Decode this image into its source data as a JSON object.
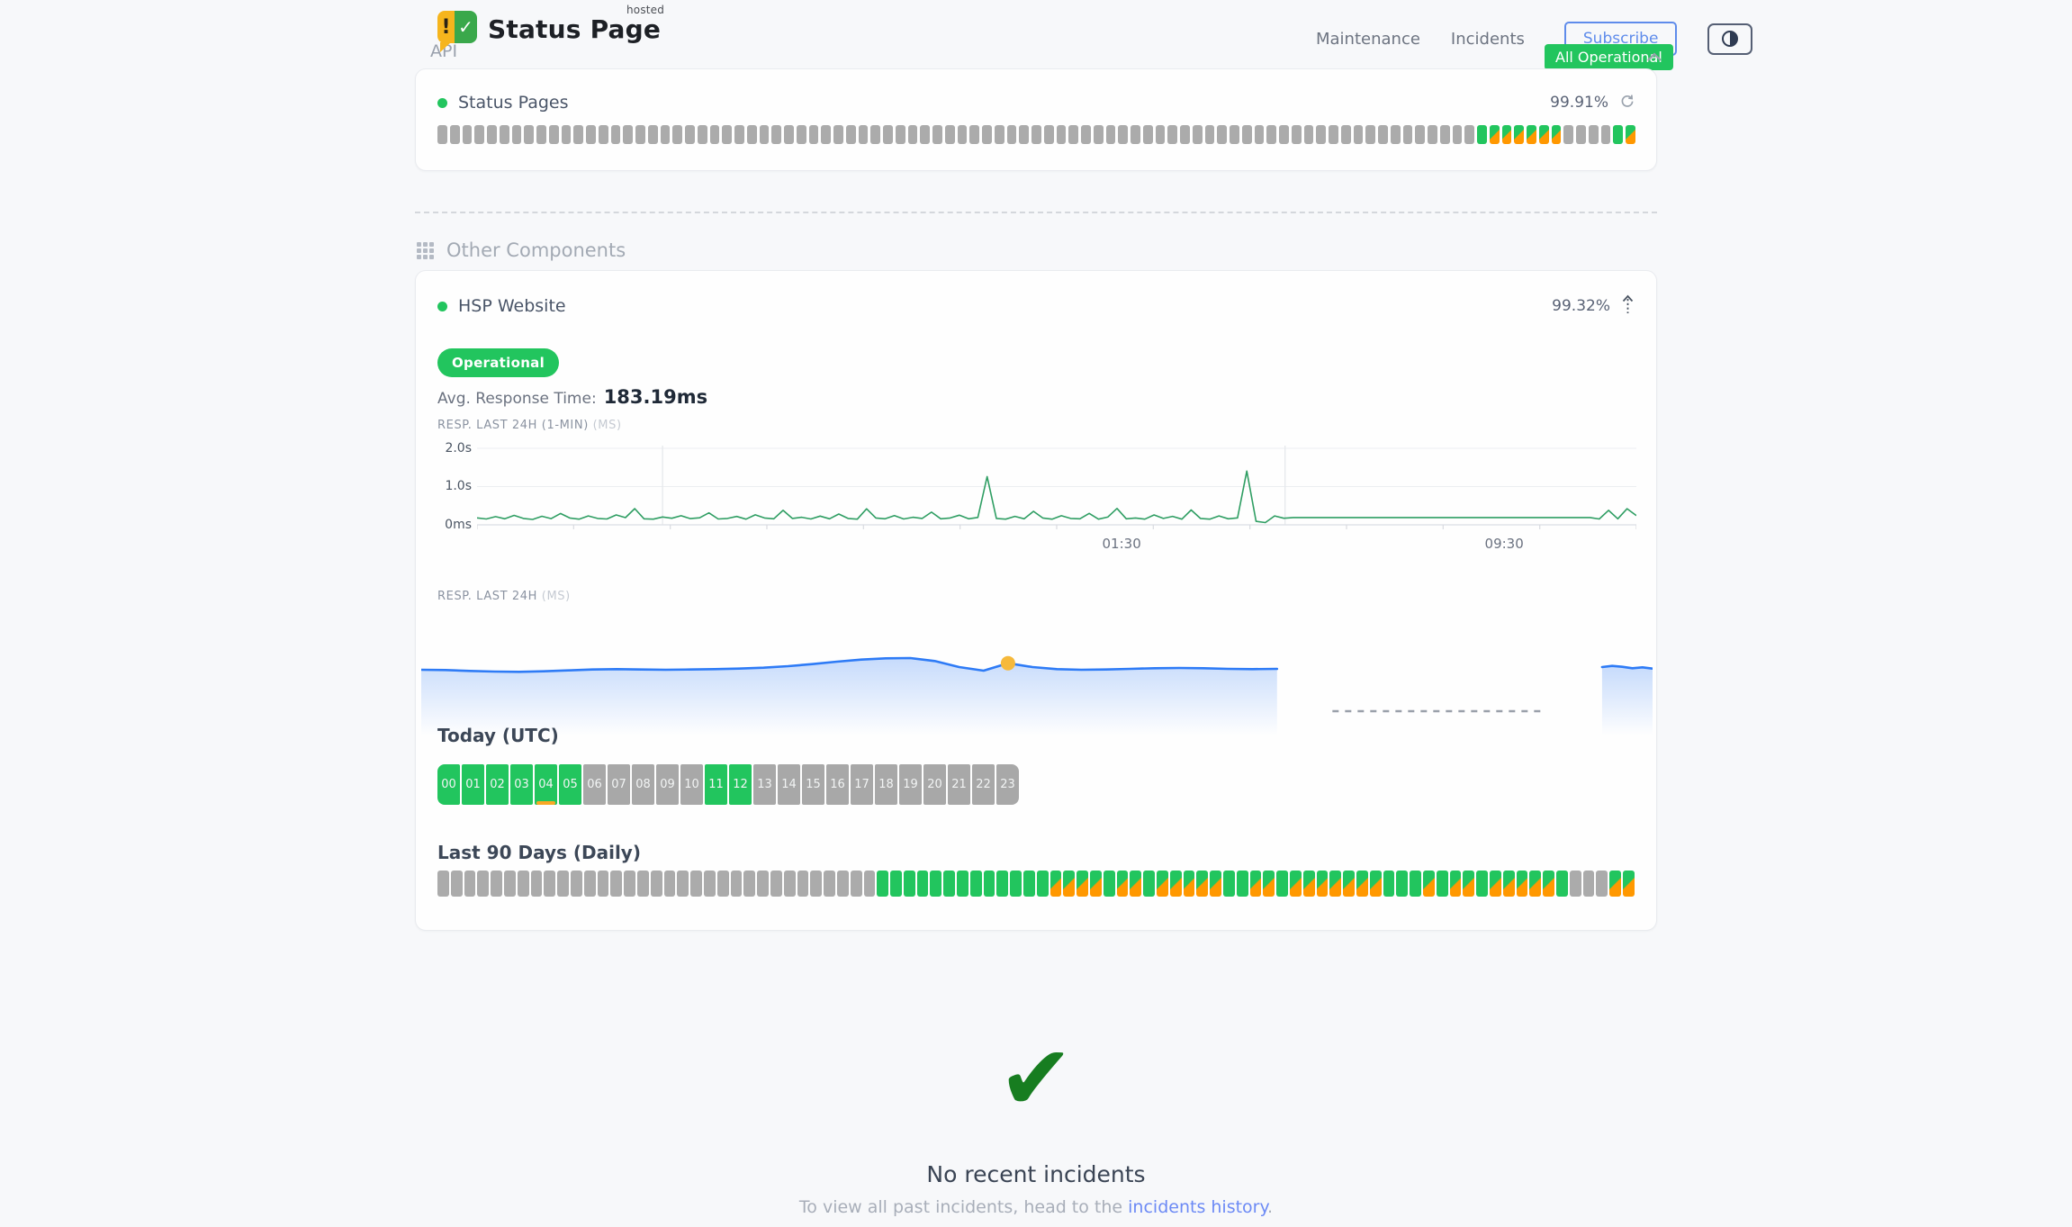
{
  "header": {
    "brand": {
      "name": "Status Page",
      "superscript": "hosted",
      "icon_exclaim": "!",
      "icon_check": "✓"
    },
    "nav": [
      {
        "label": "Maintenance"
      },
      {
        "label": "Incidents"
      }
    ],
    "subscribe_label": "Subscribe"
  },
  "api_section": {
    "title": "API",
    "status_chip": "All Operational",
    "component": {
      "name": "Status Pages",
      "uptime_pct": "99.91%",
      "bars": "nnnnnnnnnnnnnnnnnnnnnnnnnnnnnnnnnnnnnnnnnnnnnnnnnnnnnnnnnnnnnnnnnnnnnnnnnnnnnnnnnnnngppppppnnnngp"
    }
  },
  "other_section": {
    "title": "Other Components",
    "component": {
      "name": "HSP Website",
      "uptime_pct": "99.32%",
      "status_badge": "Operational",
      "avg_response_label": "Avg. Response Time:",
      "avg_response_value": "183.19ms",
      "chart1_label": "RESP. LAST 24H (1-MIN)",
      "chart1_unit": "(MS)",
      "chart2_label": "RESP. LAST 24H",
      "chart2_unit": "(MS)",
      "today_title": "Today (UTC)",
      "hour_labels": [
        "00",
        "01",
        "02",
        "03",
        "04",
        "05",
        "06",
        "07",
        "08",
        "09",
        "10",
        "11",
        "12",
        "13",
        "14",
        "15",
        "16",
        "17",
        "18",
        "19",
        "20",
        "21",
        "22",
        "23"
      ],
      "hours_status": "ggggmgnnnnnggnnnnnnnnnnn",
      "last90_title": "Last 90 Days (Daily)",
      "day_bars": "nnnnnnnnnnnnnnnnnnnnnnnnnnnnnnnnngggggggggggggppppgppgpppppggppgpppppppgggpgppgpppppgnnnpp"
    }
  },
  "legend_colors": {
    "operational": "#22c55e",
    "degraded": "#ff9800",
    "nodata": "#ababab",
    "accent_blue": "#5f8ceb",
    "link_blue": "#6c8af5",
    "check_green": "#177d20",
    "line_green": "#2f9e63",
    "area_blue": "#2e7bf6",
    "marker_yellow": "#f6b93b"
  },
  "chart_data": [
    {
      "type": "line",
      "title": "RESP. LAST 24H (1-MIN)",
      "unit": "ms",
      "line_color": "#2f9e63",
      "ylim_ms": [
        0,
        2350
      ],
      "y_tick_labels": [
        "2.0s",
        "1.0s",
        "0ms"
      ],
      "y_tick_values_ms": [
        2000,
        1000,
        0
      ],
      "x_tick_labels": [
        {
          "label": "01:30",
          "pos_pct": 55.6
        },
        {
          "label": "09:30",
          "pos_pct": 88.6
        }
      ],
      "v_gridlines_pct": [
        16,
        69.7
      ],
      "grid": true,
      "values_ms": [
        180,
        152,
        214,
        158,
        248,
        168,
        142,
        224,
        162,
        296,
        178,
        148,
        232,
        168,
        152,
        258,
        188,
        424,
        158,
        148,
        204,
        172,
        238,
        162,
        184,
        312,
        152,
        168,
        218,
        148,
        262,
        178,
        158,
        378,
        168,
        198,
        152,
        228,
        158,
        282,
        168,
        148,
        418,
        178,
        158,
        242,
        152,
        198,
        168,
        332,
        158,
        178,
        252,
        158,
        192,
        1260,
        168,
        148,
        222,
        158,
        352,
        178,
        148,
        238,
        168,
        158,
        298,
        148,
        202,
        428,
        158,
        178,
        148,
        258,
        168,
        222,
        148,
        388,
        168,
        148,
        232,
        158,
        182,
        1405,
        92,
        58,
        232,
        172,
        190,
        190,
        190,
        190,
        190,
        190,
        190,
        190,
        190,
        190,
        190,
        190,
        190,
        190,
        190,
        190,
        190,
        190,
        190,
        190,
        190,
        190,
        190,
        190,
        190,
        190,
        190,
        190,
        190,
        190,
        190,
        190,
        190,
        152,
        378,
        158,
        422,
        242
      ]
    },
    {
      "type": "area",
      "title": "RESP. LAST 24H",
      "unit": "ms",
      "line_color": "#2e7bf6",
      "marker_color": "#f6b93b",
      "segments": [
        {
          "x0_pct": 0,
          "x1_pct": 69.5,
          "values_ms": [
            171,
            170,
            167,
            165,
            164,
            166,
            169,
            172,
            173,
            172,
            171,
            172,
            173,
            175,
            178,
            183,
            190,
            198,
            205,
            209,
            210,
            200,
            180,
            168,
            193,
            180,
            173,
            171,
            172,
            174,
            176,
            177,
            176,
            174,
            173,
            174
          ]
        },
        {
          "x0_pct": 95.9,
          "x1_pct": 100,
          "values_ms": [
            180,
            184,
            181,
            176,
            179,
            175
          ]
        }
      ],
      "marker": {
        "segment": 0,
        "index": 24
      },
      "missing_data_dash": {
        "x0_pct": 74,
        "x1_pct": 91
      }
    }
  ],
  "footer": {
    "check_icon": "✔",
    "title": "No recent incidents",
    "subtitle_prefix": "To view all past incidents, head to the ",
    "link_text": "incidents history",
    "subtitle_suffix": "."
  }
}
